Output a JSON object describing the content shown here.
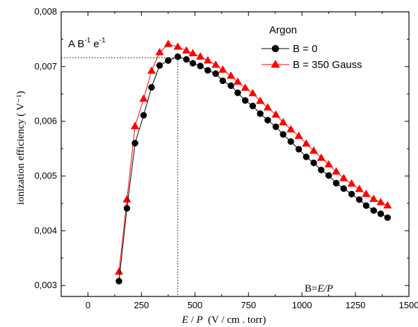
{
  "chart_data": {
    "type": "line",
    "title": "",
    "xlabel": "E / P  (V / cm . torr)",
    "xlabel_parts": {
      "e": "E",
      "slash": " / ",
      "p": "P",
      "units": "  (V / cm . torr)"
    },
    "ylabel": "ionization efficiency ( V⁻¹)",
    "xlim": [
      -125,
      1500
    ],
    "ylim": [
      0.0028,
      0.008
    ],
    "xticks": [
      0,
      250,
      500,
      750,
      1000,
      1250,
      1500
    ],
    "xtick_labels": [
      "0",
      "250",
      "500",
      "750",
      "1000",
      "1250",
      "1500"
    ],
    "yticks": [
      0.003,
      0.004,
      0.005,
      0.006,
      0.007,
      0.008
    ],
    "ytick_labels": [
      "0,003",
      "0,004",
      "0,005",
      "0,006",
      "0,007",
      "0,008"
    ],
    "grid": false,
    "legend": {
      "title": "Argon",
      "position": "top-right"
    },
    "series": [
      {
        "name": "B = 0",
        "color": "#000000",
        "marker": "circle",
        "x": [
          145,
          182,
          220,
          260,
          297,
          335,
          375,
          420,
          460,
          490,
          525,
          560,
          597,
          630,
          668,
          700,
          735,
          770,
          805,
          840,
          878,
          912,
          948,
          985,
          1020,
          1055,
          1090,
          1125,
          1160,
          1195,
          1232,
          1268,
          1300,
          1335,
          1368,
          1400
        ],
        "y": [
          0.00308,
          0.00441,
          0.0056,
          0.00611,
          0.00662,
          0.00702,
          0.00711,
          0.00718,
          0.00713,
          0.00706,
          0.00701,
          0.00693,
          0.00687,
          0.00674,
          0.00665,
          0.00652,
          0.00638,
          0.00628,
          0.00614,
          0.00602,
          0.0059,
          0.00576,
          0.00563,
          0.00549,
          0.00535,
          0.00524,
          0.00511,
          0.00501,
          0.00487,
          0.00477,
          0.00467,
          0.00457,
          0.00446,
          0.00437,
          0.00431,
          0.00424
        ]
      },
      {
        "name": "B = 350 Gauss",
        "color": "#ff0000",
        "marker": "triangle",
        "x": [
          145,
          182,
          220,
          260,
          297,
          335,
          375,
          420,
          460,
          490,
          525,
          560,
          597,
          630,
          668,
          700,
          735,
          770,
          805,
          840,
          878,
          912,
          948,
          985,
          1020,
          1055,
          1090,
          1125,
          1160,
          1195,
          1232,
          1268,
          1300,
          1335,
          1368,
          1400
        ],
        "y": [
          0.00325,
          0.00457,
          0.00591,
          0.00641,
          0.00692,
          0.00726,
          0.00741,
          0.00736,
          0.00729,
          0.00724,
          0.00718,
          0.00711,
          0.00703,
          0.00694,
          0.00683,
          0.00672,
          0.00661,
          0.00651,
          0.00637,
          0.00625,
          0.00612,
          0.00598,
          0.00585,
          0.00573,
          0.00559,
          0.00546,
          0.00533,
          0.00521,
          0.00508,
          0.00496,
          0.00486,
          0.00476,
          0.00467,
          0.00458,
          0.00452,
          0.00446
        ]
      }
    ],
    "annotations": {
      "peak_label": {
        "a": "A B",
        "e": " e",
        "exp": "-1",
        "value": 0.00716
      },
      "vline_label": {
        "b": "B=",
        "italic": "E/P",
        "x": 420
      }
    }
  }
}
